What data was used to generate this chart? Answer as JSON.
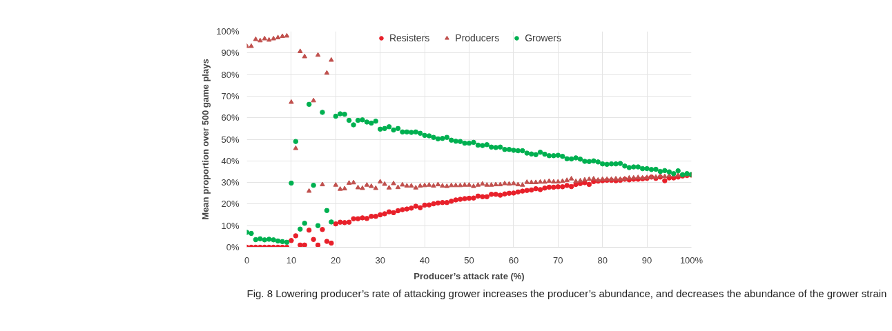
{
  "chart_data": {
    "type": "scatter",
    "xlabel": "Producer’s attack rate (%)",
    "ylabel": "Mean proportion over 500 game plays",
    "annotations": [
      "Fig. 8 Lowering producer’s rate of attacking grower increases the producer’s abundance, and decreases the abundance of the grower strain"
    ],
    "x": [
      0,
      1,
      2,
      3,
      4,
      5,
      6,
      7,
      8,
      9,
      10,
      11,
      12,
      13,
      14,
      15,
      16,
      17,
      18,
      19,
      20,
      21,
      22,
      23,
      24,
      25,
      26,
      27,
      28,
      29,
      30,
      31,
      32,
      33,
      34,
      35,
      36,
      37,
      38,
      39,
      40,
      41,
      42,
      43,
      44,
      45,
      46,
      47,
      48,
      49,
      50,
      51,
      52,
      53,
      54,
      55,
      56,
      57,
      58,
      59,
      60,
      61,
      62,
      63,
      64,
      65,
      66,
      67,
      68,
      69,
      70,
      71,
      72,
      73,
      74,
      75,
      76,
      77,
      78,
      79,
      80,
      81,
      82,
      83,
      84,
      85,
      86,
      87,
      88,
      89,
      90,
      91,
      92,
      93,
      94,
      95,
      96,
      97,
      98,
      99,
      100
    ],
    "series": [
      {
        "name": "Resisters",
        "color": "#e8202a",
        "marker": "circle",
        "values": [
          0,
          0,
          0,
          0,
          0,
          0,
          0,
          0,
          0,
          0,
          3.1,
          5.3,
          1.0,
          1.0,
          7.9,
          3.6,
          1.0,
          8.2,
          2.7,
          1.9,
          10.8,
          11.6,
          11.4,
          11.6,
          13.2,
          13.2,
          13.6,
          13.3,
          14.3,
          14.3,
          15.0,
          15.5,
          16.4,
          16.0,
          16.9,
          17.4,
          17.7,
          18.1,
          19.0,
          18.3,
          19.5,
          19.6,
          20.1,
          20.5,
          20.7,
          20.7,
          21.3,
          21.9,
          22.2,
          22.5,
          22.7,
          22.8,
          23.7,
          23.4,
          23.4,
          24.5,
          24.5,
          24.1,
          24.7,
          25.0,
          25.1,
          25.6,
          26.0,
          26.3,
          26.5,
          27.1,
          26.7,
          27.4,
          27.8,
          27.8,
          28.0,
          28.0,
          28.6,
          28.1,
          29.1,
          29.5,
          29.9,
          29.1,
          30.4,
          30.6,
          30.8,
          31.0,
          31.0,
          30.8,
          31.0,
          31.5,
          31.2,
          31.5,
          31.5,
          31.7,
          31.9,
          32.5,
          31.9,
          32.5,
          30.8,
          32.1,
          32.1,
          32.5,
          33.0,
          33.2,
          33.4
        ]
      },
      {
        "name": "Producers",
        "color": "#c0504d",
        "marker": "triangle",
        "values": [
          93.1,
          93.1,
          96.3,
          95.7,
          96.6,
          96.0,
          96.6,
          97.1,
          97.7,
          97.9,
          67.2,
          45.8,
          90.7,
          88.3,
          26.0,
          67.9,
          89.0,
          29.0,
          80.7,
          86.7,
          28.8,
          26.9,
          27.1,
          29.7,
          29.9,
          27.6,
          27.3,
          28.8,
          28.2,
          27.3,
          30.3,
          29.2,
          27.5,
          29.5,
          27.7,
          28.9,
          28.4,
          28.4,
          27.5,
          28.4,
          28.6,
          28.8,
          28.4,
          29.0,
          28.4,
          28.2,
          28.6,
          28.6,
          28.6,
          28.8,
          28.8,
          28.2,
          28.8,
          29.3,
          28.8,
          28.8,
          29.0,
          29.0,
          29.5,
          29.3,
          29.5,
          29.0,
          28.8,
          30.1,
          30.0,
          30.0,
          30.2,
          30.2,
          30.6,
          30.3,
          30.3,
          30.6,
          31.0,
          31.7,
          30.5,
          30.8,
          31.2,
          31.5,
          31.7,
          31.1,
          31.5,
          31.5,
          31.5,
          31.7,
          31.5,
          31.7,
          32.1,
          32.1,
          32.3,
          32.1,
          32.3,
          32.5,
          32.5,
          33.0,
          32.8,
          33.2,
          33.2,
          33.4,
          33.4,
          33.4,
          33.4
        ]
      },
      {
        "name": "Growers",
        "color": "#00b050",
        "marker": "circle",
        "values": [
          6.9,
          6.4,
          3.5,
          3.9,
          3.4,
          3.7,
          3.4,
          2.9,
          2.6,
          2.3,
          29.7,
          49.0,
          8.4,
          11.1,
          66.2,
          28.7,
          10.0,
          62.5,
          17.0,
          11.7,
          60.7,
          61.8,
          61.6,
          58.8,
          56.7,
          58.8,
          59.0,
          58.0,
          57.5,
          58.4,
          54.7,
          55.0,
          55.8,
          54.3,
          55.0,
          53.4,
          53.4,
          53.2,
          53.4,
          52.8,
          51.8,
          51.6,
          50.9,
          50.2,
          50.4,
          50.9,
          49.6,
          49.1,
          49.0,
          48.2,
          48.2,
          48.6,
          47.3,
          47.1,
          47.5,
          46.4,
          46.2,
          46.4,
          45.3,
          45.3,
          44.9,
          44.7,
          44.7,
          43.6,
          43.2,
          42.9,
          44.0,
          43.1,
          42.4,
          42.4,
          42.6,
          42.1,
          41.0,
          40.9,
          41.4,
          40.8,
          39.8,
          39.7,
          40.0,
          39.5,
          38.6,
          38.4,
          38.6,
          38.6,
          38.8,
          37.6,
          36.9,
          37.2,
          37.2,
          36.4,
          36.4,
          36.0,
          36.1,
          35.1,
          35.5,
          34.9,
          34.1,
          35.4,
          33.6,
          34.1,
          33.7
        ]
      }
    ],
    "xlim": [
      0,
      100
    ],
    "ylim": [
      0,
      100
    ],
    "xticks": [
      0,
      10,
      20,
      30,
      40,
      50,
      60,
      70,
      80,
      90,
      {
        "value": 100,
        "label": "100%"
      }
    ],
    "yticks": [
      {
        "value": 0,
        "label": "0%"
      },
      {
        "value": 10,
        "label": "10%"
      },
      {
        "value": 20,
        "label": "20%"
      },
      {
        "value": 30,
        "label": "30%"
      },
      {
        "value": 40,
        "label": "40%"
      },
      {
        "value": 50,
        "label": "50%"
      },
      {
        "value": 60,
        "label": "60%"
      },
      {
        "value": 70,
        "label": "70%"
      },
      {
        "value": 80,
        "label": "80%"
      },
      {
        "value": 90,
        "label": "90%"
      },
      {
        "value": 100,
        "label": "100%"
      }
    ],
    "grid": true,
    "legend": "top"
  }
}
